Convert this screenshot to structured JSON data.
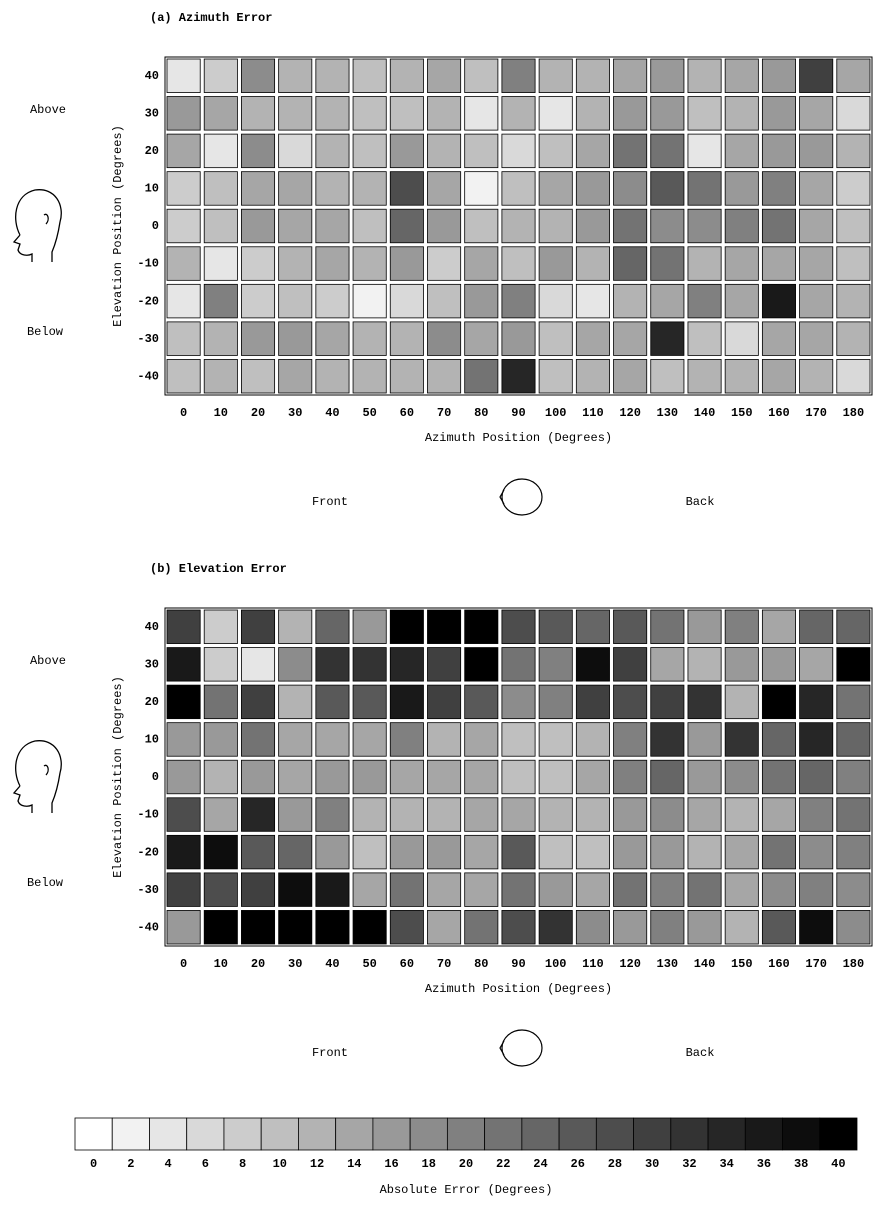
{
  "chart_data": [
    {
      "type": "heatmap",
      "title": "(a)  Azimuth Error",
      "x_label": "Azimuth Position (Degrees)",
      "y_label": "Elevation Position (Degrees)",
      "annotations": [
        "Above",
        "Below",
        "Front",
        "Back"
      ],
      "x_categories": [
        0,
        10,
        20,
        30,
        40,
        50,
        60,
        70,
        80,
        90,
        100,
        110,
        120,
        130,
        140,
        150,
        160,
        170,
        180
      ],
      "y_categories": [
        40,
        30,
        20,
        10,
        0,
        -10,
        -20,
        -30,
        -40
      ],
      "values": [
        [
          4,
          8,
          18,
          12,
          12,
          10,
          12,
          14,
          10,
          20,
          12,
          12,
          14,
          16,
          12,
          14,
          16,
          30,
          14
        ],
        [
          16,
          14,
          12,
          12,
          12,
          10,
          10,
          12,
          4,
          12,
          4,
          12,
          16,
          16,
          10,
          12,
          16,
          14,
          6
        ],
        [
          14,
          4,
          18,
          6,
          12,
          10,
          16,
          12,
          10,
          6,
          10,
          14,
          22,
          22,
          4,
          14,
          16,
          16,
          12
        ],
        [
          8,
          10,
          14,
          14,
          12,
          12,
          28,
          14,
          2,
          10,
          14,
          16,
          18,
          26,
          22,
          16,
          20,
          14,
          8
        ],
        [
          8,
          10,
          16,
          14,
          14,
          10,
          24,
          16,
          10,
          12,
          12,
          16,
          22,
          18,
          18,
          20,
          22,
          14,
          10
        ],
        [
          12,
          4,
          8,
          12,
          14,
          12,
          16,
          8,
          14,
          10,
          16,
          12,
          24,
          22,
          12,
          14,
          14,
          14,
          10
        ],
        [
          4,
          20,
          8,
          10,
          8,
          2,
          6,
          10,
          16,
          20,
          6,
          4,
          12,
          14,
          20,
          14,
          36,
          14,
          12
        ],
        [
          10,
          12,
          16,
          16,
          14,
          12,
          12,
          18,
          14,
          16,
          10,
          14,
          14,
          34,
          10,
          6,
          14,
          14,
          12
        ],
        [
          10,
          12,
          10,
          14,
          12,
          12,
          12,
          12,
          22,
          34,
          10,
          12,
          14,
          10,
          12,
          12,
          14,
          12,
          6
        ]
      ]
    },
    {
      "type": "heatmap",
      "title": "(b)  Elevation Error",
      "x_label": "Azimuth Position (Degrees)",
      "y_label": "Elevation Position (Degrees)",
      "annotations": [
        "Above",
        "Below",
        "Front",
        "Back"
      ],
      "x_categories": [
        0,
        10,
        20,
        30,
        40,
        50,
        60,
        70,
        80,
        90,
        100,
        110,
        120,
        130,
        140,
        150,
        160,
        170,
        180
      ],
      "y_categories": [
        40,
        30,
        20,
        10,
        0,
        -10,
        -20,
        -30,
        -40
      ],
      "values": [
        [
          30,
          8,
          30,
          12,
          24,
          16,
          40,
          40,
          40,
          28,
          26,
          24,
          26,
          22,
          16,
          20,
          14,
          24,
          24
        ],
        [
          36,
          8,
          4,
          18,
          32,
          32,
          34,
          30,
          40,
          22,
          20,
          38,
          30,
          14,
          12,
          16,
          16,
          14,
          40
        ],
        [
          40,
          22,
          30,
          12,
          26,
          26,
          36,
          30,
          26,
          18,
          20,
          30,
          28,
          30,
          32,
          12,
          40,
          34,
          22
        ],
        [
          16,
          16,
          22,
          14,
          14,
          14,
          20,
          12,
          14,
          10,
          10,
          12,
          20,
          32,
          16,
          32,
          24,
          34,
          24
        ],
        [
          16,
          12,
          16,
          14,
          16,
          16,
          14,
          14,
          14,
          10,
          10,
          14,
          20,
          24,
          16,
          18,
          22,
          24,
          20
        ],
        [
          28,
          14,
          34,
          16,
          20,
          12,
          12,
          12,
          14,
          14,
          12,
          12,
          16,
          18,
          14,
          12,
          14,
          20,
          22
        ],
        [
          36,
          38,
          26,
          24,
          16,
          10,
          16,
          16,
          14,
          26,
          10,
          10,
          16,
          16,
          12,
          14,
          22,
          18,
          20
        ],
        [
          30,
          28,
          30,
          38,
          36,
          14,
          22,
          14,
          14,
          22,
          16,
          14,
          22,
          20,
          22,
          14,
          18,
          20,
          18
        ],
        [
          16,
          40,
          40,
          40,
          40,
          40,
          28,
          14,
          22,
          28,
          32,
          18,
          16,
          20,
          16,
          12,
          26,
          38,
          18
        ]
      ]
    },
    {
      "type": "colorbar",
      "title": "Absolute Error (Degrees)",
      "values": [
        0,
        2,
        4,
        6,
        8,
        10,
        12,
        14,
        16,
        18,
        20,
        22,
        24,
        26,
        28,
        30,
        32,
        34,
        36,
        38,
        40
      ]
    }
  ]
}
